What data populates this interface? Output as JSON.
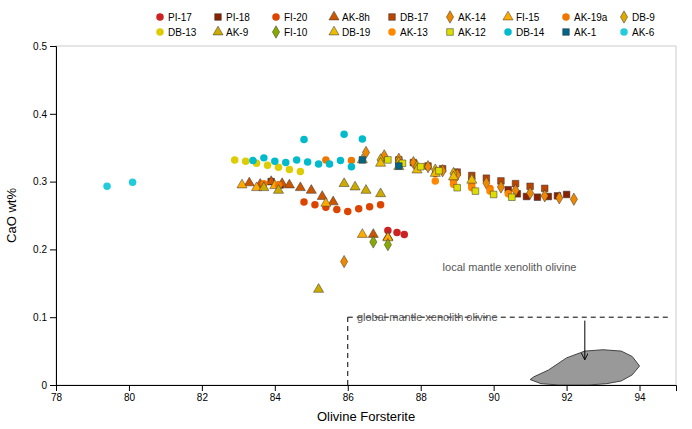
{
  "chart_data": {
    "type": "scatter",
    "xlabel": "Olivine Forsterite",
    "ylabel": "CaO wt%",
    "xlim": [
      78,
      95
    ],
    "ylim": [
      0,
      0.5
    ],
    "xticks": [
      78,
      80,
      82,
      84,
      86,
      88,
      90,
      92,
      94
    ],
    "yticks": [
      0,
      0.1,
      0.2,
      0.3,
      0.4,
      0.5
    ],
    "grid": false,
    "legend": "top",
    "series": [
      {
        "name": "PI-17",
        "marker": "circle",
        "color": "#cc2222",
        "x": [
          87.1,
          87.35,
          87.55
        ],
        "values": [
          0.228,
          0.225,
          0.222
        ]
      },
      {
        "name": "PI-18",
        "marker": "square",
        "color": "#882200",
        "x": [
          83.9,
          84.15,
          90.4,
          90.65,
          90.9,
          91.2,
          91.5,
          91.75,
          92.0
        ],
        "values": [
          0.3,
          0.295,
          0.288,
          0.282,
          0.278,
          0.277,
          0.278,
          0.279,
          0.281
        ]
      },
      {
        "name": "FI-20",
        "marker": "circle",
        "color": "#dd4400",
        "x": [
          84.8,
          85.1,
          85.4,
          85.7,
          86.0,
          86.3,
          86.6,
          86.9
        ],
        "values": [
          0.27,
          0.266,
          0.262,
          0.259,
          0.256,
          0.26,
          0.263,
          0.266
        ]
      },
      {
        "name": "AK-8h",
        "marker": "triangle",
        "color": "#cc5500",
        "x": [
          83.3,
          83.6,
          83.9,
          84.2,
          84.4,
          84.7,
          85.0,
          85.3,
          85.6,
          86.7,
          87.1
        ],
        "values": [
          0.298,
          0.296,
          0.3,
          0.297,
          0.295,
          0.291,
          0.287,
          0.278,
          0.27,
          0.222,
          0.218
        ]
      },
      {
        "name": "DB-17",
        "marker": "square",
        "color": "#bb4400",
        "x": [
          87.4,
          87.8,
          88.2,
          88.6,
          89.0,
          89.4,
          89.8,
          90.2,
          90.6,
          91.0,
          91.4
        ],
        "values": [
          0.332,
          0.328,
          0.323,
          0.319,
          0.314,
          0.309,
          0.305,
          0.301,
          0.297,
          0.293,
          0.29
        ]
      },
      {
        "name": "AK-14",
        "marker": "diamond",
        "color": "#ee8800",
        "x": [
          85.9,
          86.5,
          87.0,
          87.4,
          87.8,
          88.2,
          88.6,
          89.0,
          89.4,
          89.8,
          90.2,
          90.6,
          91.0,
          91.4,
          91.8,
          92.2
        ],
        "values": [
          0.182,
          0.343,
          0.338,
          0.333,
          0.328,
          0.322,
          0.316,
          0.31,
          0.304,
          0.298,
          0.292,
          0.287,
          0.283,
          0.279,
          0.276,
          0.274
        ]
      },
      {
        "name": "FI-15",
        "marker": "triangle",
        "color": "#ffaa00",
        "x": [
          83.1,
          83.5,
          84.0,
          85.4,
          86.4,
          87.1
        ],
        "values": [
          0.295,
          0.291,
          0.294,
          0.268,
          0.222,
          0.217
        ]
      },
      {
        "name": "AK-19a",
        "marker": "circle",
        "color": "#ee7700",
        "x": [
          83.7,
          84.1,
          85.4,
          86.1,
          87.4,
          87.9,
          88.4,
          88.9,
          89.4,
          89.9
        ],
        "values": [
          0.297,
          0.295,
          0.332,
          0.331,
          0.326,
          0.321,
          0.312,
          0.302,
          0.295,
          0.29
        ]
      },
      {
        "name": "DB-9",
        "marker": "diamond",
        "color": "#ddaa00",
        "x": [
          86.9,
          87.4,
          87.9,
          88.4,
          88.9
        ],
        "values": [
          0.332,
          0.328,
          0.322,
          0.317,
          0.312
        ]
      },
      {
        "name": "DB-13",
        "marker": "circle",
        "color": "#ddcc00",
        "x": [
          82.9,
          83.2,
          83.5,
          83.8,
          84.1,
          84.4,
          84.7
        ],
        "values": [
          0.332,
          0.33,
          0.327,
          0.324,
          0.321,
          0.318,
          0.315
        ]
      },
      {
        "name": "AK-9",
        "marker": "triangle",
        "color": "#ccaa00",
        "x": [
          83.7,
          84.1,
          85.2,
          85.9,
          86.2,
          86.5,
          86.9
        ],
        "values": [
          0.291,
          0.287,
          0.141,
          0.297,
          0.292,
          0.287,
          0.282
        ]
      },
      {
        "name": "FI-10",
        "marker": "diamond",
        "color": "#88aa00",
        "x": [
          86.7,
          87.1
        ],
        "values": [
          0.211,
          0.207
        ]
      },
      {
        "name": "DB-19",
        "marker": "triangle",
        "color": "#eebb00",
        "x": [
          86.4,
          86.9,
          87.4,
          87.9,
          88.4,
          88.9,
          89.4
        ],
        "values": [
          0.332,
          0.327,
          0.322,
          0.317,
          0.312,
          0.307,
          0.302
        ]
      },
      {
        "name": "AK-13",
        "marker": "circle",
        "color": "#ff8800",
        "x": [
          88.4,
          88.9,
          89.4,
          89.9,
          90.4
        ],
        "values": [
          0.301,
          0.296,
          0.291,
          0.286,
          0.282
        ]
      },
      {
        "name": "AK-12",
        "marker": "square",
        "color": "#dddd00",
        "x": [
          87.1,
          87.5,
          88.0,
          88.5,
          89.0,
          89.5,
          90.0,
          90.5
        ],
        "values": [
          0.332,
          0.327,
          0.322,
          0.316,
          0.291,
          0.286,
          0.281,
          0.277
        ]
      },
      {
        "name": "DB-14",
        "marker": "circle",
        "color": "#00bbcc",
        "x": [
          83.4,
          83.7,
          84.0,
          84.3,
          84.6,
          84.9,
          85.2,
          85.5,
          85.8,
          86.1,
          86.4,
          84.8,
          85.9
        ],
        "values": [
          0.331,
          0.335,
          0.33,
          0.328,
          0.332,
          0.329,
          0.326,
          0.326,
          0.331,
          0.322,
          0.363,
          0.362,
          0.37
        ]
      },
      {
        "name": "AK-1",
        "marker": "square",
        "color": "#006688",
        "x": [
          86.4,
          87.4
        ],
        "values": [
          0.332,
          0.323
        ]
      },
      {
        "name": "AK-6",
        "marker": "circle",
        "color": "#22ccdd",
        "x": [
          79.4,
          80.1
        ],
        "values": [
          0.293,
          0.299
        ]
      }
    ],
    "reference_lines": [
      {
        "line_style": "dashed",
        "color": "#000000",
        "x": [
          86.0,
          86.0
        ],
        "y": [
          0.0,
          0.1
        ]
      },
      {
        "line_style": "dashed",
        "color": "#000000",
        "x": [
          86.0,
          94.8
        ],
        "y": [
          0.1,
          0.1
        ]
      }
    ],
    "region": {
      "color": "#999999",
      "x": [
        91.0,
        91.3,
        91.8,
        92.2,
        92.6,
        93.1,
        93.5,
        93.8,
        94.0,
        93.8,
        93.5,
        93.0,
        92.5,
        92.0,
        91.5,
        91.1,
        91.0
      ],
      "y": [
        0.008,
        0.002,
        0.0,
        0.0,
        0.0,
        0.002,
        0.006,
        0.015,
        0.028,
        0.042,
        0.05,
        0.052,
        0.05,
        0.04,
        0.022,
        0.012,
        0.008
      ]
    },
    "arrow": {
      "color": "#000000",
      "x": [
        92.5,
        92.5
      ],
      "y": [
        0.095,
        0.038
      ]
    },
    "annotations": [
      {
        "text": "local mantle xenolith olivine",
        "x": 88.6,
        "y": 0.168
      },
      {
        "text": "global mantle xenolith olivine",
        "x": 86.25,
        "y": 0.094
      }
    ]
  }
}
